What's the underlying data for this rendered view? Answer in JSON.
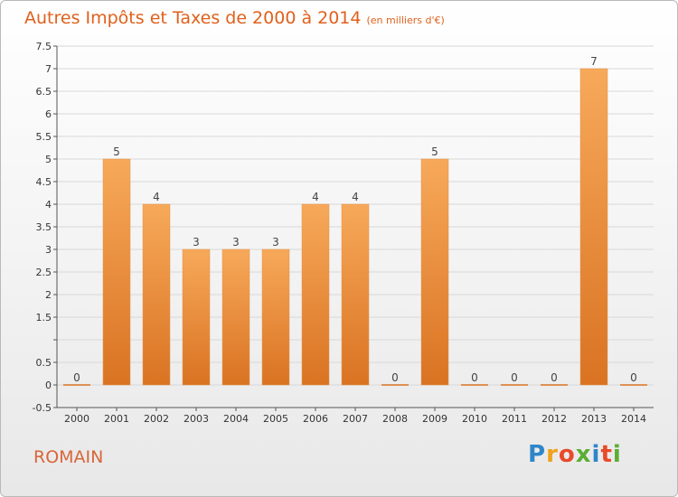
{
  "title": "Autres Impôts et Taxes de 2000 à 2014",
  "subtitle": "(en milliers d'€)",
  "commune": "ROMAIN",
  "logo": {
    "text": "Proxiti",
    "letters": [
      "P",
      "r",
      "o",
      "x",
      "i",
      "t",
      "i"
    ],
    "colors": [
      "#2e86c9",
      "#f0a21c",
      "#e84a2a",
      "#5aae34",
      "#2e86c9",
      "#e84a2a",
      "#5aae34"
    ]
  },
  "colors": {
    "bar_top": "#f7a95a",
    "bar_bottom": "#d97322",
    "text": "#e0601b",
    "axis_label": "#333333",
    "grid": "#d8d8d8"
  },
  "chart_data": {
    "type": "bar",
    "categories": [
      "2000",
      "2001",
      "2002",
      "2003",
      "2004",
      "2005",
      "2006",
      "2007",
      "2008",
      "2009",
      "2010",
      "2011",
      "2012",
      "2013",
      "2014"
    ],
    "values": [
      0,
      5,
      4,
      3,
      3,
      3,
      4,
      4,
      0,
      5,
      0,
      0,
      0,
      7,
      0
    ],
    "data_labels": [
      "0",
      "5",
      "4",
      "3",
      "3",
      "3",
      "4",
      "4",
      "0",
      "5",
      "0",
      "0",
      "0",
      "7",
      "0"
    ],
    "ylim": [
      -0.5,
      7.5
    ],
    "yticks": [
      -0.5,
      0,
      0.5,
      1,
      1.5,
      2,
      2.5,
      3,
      3.5,
      4,
      4.5,
      5,
      5.5,
      6,
      6.5,
      7,
      7.5
    ],
    "ytick_labels": [
      "-0.5",
      "0",
      "0.5",
      "",
      "1.5",
      "2",
      "2.5",
      "3",
      "3.5",
      "4",
      "4.5",
      "5",
      "5.5",
      "6",
      "6.5",
      "7",
      "7.5"
    ],
    "grid": true,
    "legend": false
  }
}
